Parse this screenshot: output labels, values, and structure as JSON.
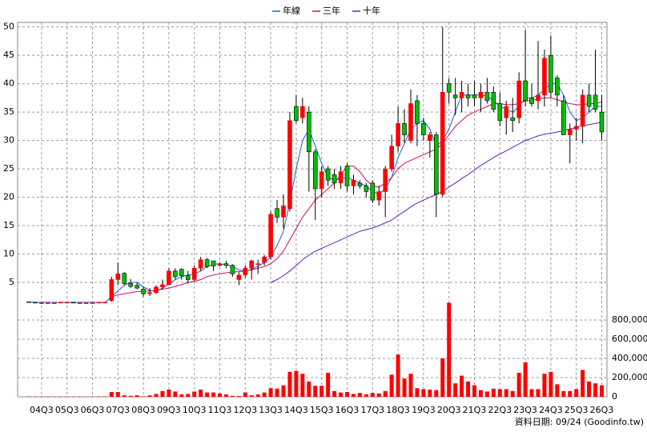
{
  "chart_data": {
    "type": "candlestick",
    "categories": [
      null,
      null,
      "04Q3",
      null,
      null,
      null,
      "05Q3",
      null,
      null,
      null,
      "06Q3",
      null,
      null,
      null,
      "07Q3",
      null,
      null,
      null,
      "08Q3",
      null,
      null,
      null,
      "09Q3",
      null,
      null,
      null,
      "10Q3",
      null,
      null,
      null,
      "11Q3",
      null,
      null,
      null,
      "12Q3",
      null,
      null,
      null,
      "13Q3",
      null,
      null,
      null,
      "14Q3",
      null,
      null,
      null,
      "15Q3",
      null,
      null,
      null,
      "16Q3",
      null,
      null,
      null,
      "17Q3",
      null,
      null,
      null,
      "18Q3",
      null,
      null,
      null,
      "19Q3",
      null,
      null,
      null,
      "20Q3",
      null,
      null,
      null,
      "21Q3",
      null,
      null,
      null,
      "22Q3",
      null,
      null,
      null,
      "23Q3",
      null,
      null,
      null,
      "24Q3",
      null,
      null,
      null,
      "25Q3",
      null,
      null,
      null,
      "26Q3"
    ],
    "open": [
      1.6,
      1.5,
      1.4,
      1.4,
      1.4,
      1.4,
      1.5,
      1.5,
      1.4,
      1.4,
      1.4,
      1.4,
      1.5,
      1.8,
      5.5,
      6.6,
      4.8,
      4.5,
      3.8,
      3.0,
      3.2,
      4.2,
      4.6,
      7.0,
      7.3,
      6.2,
      5.5,
      7.5,
      9.0,
      8.8,
      8.0,
      8.3,
      8.0,
      5.5,
      6.3,
      7.5,
      8.2,
      8.5,
      9.5,
      18,
      16.5,
      18,
      36,
      34,
      35,
      28,
      21.5,
      25,
      24,
      22.5,
      25.5,
      22,
      22.5,
      22,
      22.5,
      19.5,
      21,
      25,
      29,
      33,
      30,
      37,
      33,
      30,
      31,
      20.5,
      40,
      38,
      37.5,
      38,
      38,
      37.5,
      38.5,
      38.5,
      36.5,
      34,
      34,
      34,
      40.5,
      37.5,
      37,
      38,
      45,
      41,
      37,
      31,
      32,
      32.5,
      38,
      38,
      35
    ],
    "high": [
      1.6,
      1.5,
      1.5,
      1.4,
      1.4,
      1.5,
      1.5,
      1.5,
      1.5,
      1.4,
      1.4,
      1.5,
      1.5,
      6,
      8.5,
      6.8,
      5.6,
      5,
      4.2,
      4,
      4.5,
      5.5,
      7.5,
      7.5,
      7.5,
      7,
      8,
      9.5,
      9.3,
      8.8,
      8.5,
      8.8,
      8.2,
      6.8,
      8,
      9,
      9,
      9.8,
      17.5,
      19.5,
      20.5,
      35,
      38,
      37.5,
      36,
      28.5,
      25.5,
      25.5,
      25,
      25.5,
      26,
      24,
      23,
      22.5,
      23,
      22,
      25.5,
      31,
      36,
      35.5,
      39,
      38,
      34,
      31.5,
      31.5,
      50,
      41,
      41,
      40.5,
      40,
      40.5,
      40,
      41,
      39.5,
      38.5,
      37,
      37.5,
      42,
      49.5,
      40,
      47.5,
      46,
      48.5,
      41.5,
      38,
      33,
      34,
      39,
      40,
      46,
      38
    ],
    "low": [
      1.5,
      1.4,
      1.4,
      1.3,
      1.3,
      1.4,
      1.4,
      1.4,
      1.4,
      1.3,
      1.3,
      1.4,
      1.4,
      1.6,
      4.5,
      4.5,
      4,
      3.8,
      2.5,
      2.6,
      3,
      3.8,
      4.5,
      5.5,
      5.5,
      4.8,
      5.2,
      7,
      7.5,
      7,
      7.8,
      7.5,
      6,
      4.5,
      5.8,
      5.5,
      6.5,
      8,
      9,
      15.5,
      14.5,
      17.5,
      33,
      33,
      21,
      16,
      20,
      22,
      21.5,
      21.5,
      21,
      20.5,
      21.5,
      20,
      19,
      18.5,
      16.5,
      24.5,
      28,
      29.5,
      29.5,
      29,
      30,
      27,
      16.5,
      20,
      36.5,
      34.5,
      35,
      36,
      36,
      35,
      36.5,
      35,
      32.5,
      31,
      31.5,
      33,
      36,
      36,
      35.5,
      36,
      37.5,
      36,
      31,
      26,
      30,
      29.5,
      35,
      35,
      30
    ],
    "close": [
      1.5,
      1.4,
      1.4,
      1.4,
      1.4,
      1.5,
      1.5,
      1.4,
      1.4,
      1.4,
      1.4,
      1.5,
      1.5,
      5.5,
      6.5,
      4.8,
      4.3,
      4.0,
      3.0,
      3.2,
      4.2,
      4.6,
      7.0,
      6.0,
      6.2,
      5.5,
      7.5,
      9.0,
      7.8,
      7.9,
      8.2,
      8.0,
      6.5,
      6.3,
      7.5,
      8.8,
      8.3,
      9.5,
      17,
      16.5,
      18.5,
      33.5,
      33.5,
      36,
      28,
      21.5,
      24.5,
      23,
      22.5,
      24.5,
      22,
      23,
      22,
      21,
      19.5,
      21,
      25,
      29,
      33,
      31,
      36.5,
      33,
      31,
      31,
      20.5,
      38.5,
      38.5,
      37.5,
      38.5,
      37.5,
      37.5,
      38.5,
      37,
      35.5,
      33.5,
      36,
      33.5,
      40.5,
      37,
      36.5,
      38,
      44.5,
      38.5,
      38,
      31,
      32,
      32.5,
      38,
      36,
      35.5,
      31.5
    ],
    "up_color": "#ff0000",
    "down_color": "#00c000",
    "volume": [
      2000,
      1000,
      1000,
      1000,
      1000,
      1000,
      1000,
      2000,
      1000,
      1000,
      1000,
      2000,
      3000,
      50000,
      50000,
      15000,
      10000,
      15000,
      5000,
      15000,
      30000,
      60000,
      75000,
      55000,
      25000,
      30000,
      55000,
      75000,
      45000,
      45000,
      35000,
      25000,
      10000,
      8000,
      45000,
      15000,
      25000,
      45000,
      90000,
      85000,
      120000,
      260000,
      270000,
      240000,
      160000,
      115000,
      115000,
      250000,
      60000,
      45000,
      50000,
      30000,
      40000,
      25000,
      40000,
      35000,
      60000,
      230000,
      440000,
      190000,
      240000,
      90000,
      80000,
      75000,
      70000,
      400000,
      980000,
      140000,
      220000,
      160000,
      120000,
      70000,
      55000,
      85000,
      80000,
      80000,
      60000,
      250000,
      360000,
      80000,
      80000,
      240000,
      260000,
      130000,
      60000,
      60000,
      80000,
      280000,
      160000,
      140000,
      120000
    ],
    "volume_color": "#ff0000",
    "series": [
      {
        "name": "年線",
        "color": "#1a5fd6",
        "values": [
          1.5,
          1.5,
          1.5,
          1.5,
          1.5,
          1.5,
          1.5,
          1.5,
          1.5,
          1.5,
          1.5,
          1.5,
          1.5,
          2.5,
          3.5,
          4.5,
          5.0,
          5.0,
          4.2,
          3.6,
          3.5,
          4.0,
          4.7,
          5.5,
          6.0,
          6.3,
          6.5,
          7.0,
          7.8,
          8.2,
          8.3,
          8.1,
          7.8,
          7.2,
          7.0,
          7.3,
          7.8,
          8.5,
          9.5,
          11.5,
          14,
          19,
          25,
          30,
          32,
          29,
          26,
          23.5,
          23,
          23.3,
          23.5,
          23,
          22.5,
          22,
          21,
          20.5,
          21.5,
          23.5,
          27,
          29.5,
          32,
          33,
          33.5,
          32,
          29,
          30,
          32,
          35,
          38,
          38,
          38,
          38,
          37.8,
          37,
          36,
          35.5,
          35,
          36,
          37.5,
          37.5,
          38,
          39,
          40,
          40,
          38,
          35,
          33.5,
          34,
          35,
          36,
          36
        ]
      },
      {
        "name": "三年",
        "color": "#d0105a",
        "values": [
          null,
          null,
          null,
          null,
          null,
          null,
          null,
          null,
          null,
          null,
          null,
          null,
          null,
          2.5,
          2.8,
          3.0,
          3.2,
          3.4,
          3.4,
          3.5,
          3.6,
          3.8,
          4.0,
          4.3,
          4.6,
          5.0,
          5.2,
          5.5,
          6.0,
          6.3,
          6.5,
          6.7,
          6.8,
          6.9,
          7.0,
          7.2,
          7.5,
          7.8,
          8.3,
          9.2,
          10.5,
          12.5,
          14.5,
          16.5,
          18,
          19.5,
          20.5,
          21.5,
          22.5,
          24,
          25.5,
          25.5,
          24.5,
          23,
          22,
          21.8,
          22.5,
          23.5,
          25,
          26,
          26.5,
          27,
          27.5,
          28,
          28.5,
          29.5,
          31,
          32.5,
          33.5,
          34.5,
          35,
          35.5,
          36,
          36.5,
          36.5,
          36.3,
          36.3,
          36.5,
          37,
          37,
          37.3,
          37.5,
          37.5,
          37.2,
          36.8,
          36.5,
          36.3,
          36.3,
          36.5,
          36.5,
          36.8
        ]
      },
      {
        "name": "十年",
        "color": "#6020c0",
        "values": [
          null,
          null,
          null,
          null,
          null,
          null,
          null,
          null,
          null,
          null,
          null,
          null,
          null,
          null,
          null,
          null,
          null,
          null,
          null,
          null,
          null,
          null,
          null,
          null,
          null,
          null,
          null,
          null,
          null,
          null,
          null,
          null,
          null,
          null,
          null,
          null,
          null,
          null,
          5.0,
          5.5,
          6.2,
          7.0,
          8.0,
          9.0,
          9.8,
          10.5,
          11.0,
          11.5,
          12.0,
          12.5,
          13.0,
          13.5,
          14.0,
          14.3,
          14.6,
          15.0,
          15.5,
          16.0,
          16.8,
          17.5,
          18.3,
          19.0,
          19.5,
          20.0,
          20.5,
          21.0,
          21.8,
          22.5,
          23.3,
          24.0,
          24.8,
          25.6,
          26.3,
          27.0,
          27.6,
          28.2,
          28.8,
          29.4,
          30.0,
          30.4,
          30.8,
          31.1,
          31.3,
          31.5,
          31.7,
          32.0,
          32.3,
          32.6,
          32.8,
          33.0,
          33.2
        ]
      }
    ],
    "ylim": [
      0,
      50.8
    ],
    "yticks": [
      5,
      10,
      15,
      20,
      25,
      30,
      35,
      40,
      45,
      50
    ],
    "y2lim": [
      0,
      1000000
    ],
    "y2ticks": [
      0,
      {
        "value": 200000,
        "label": "200,000"
      },
      {
        "value": 400000,
        "label": "400,000"
      },
      {
        "value": 600000,
        "label": "600,000"
      },
      {
        "value": 800000,
        "label": "800,000"
      }
    ],
    "grid": true,
    "source": "資料日期: 09/24 (Goodinfo.tw)"
  }
}
